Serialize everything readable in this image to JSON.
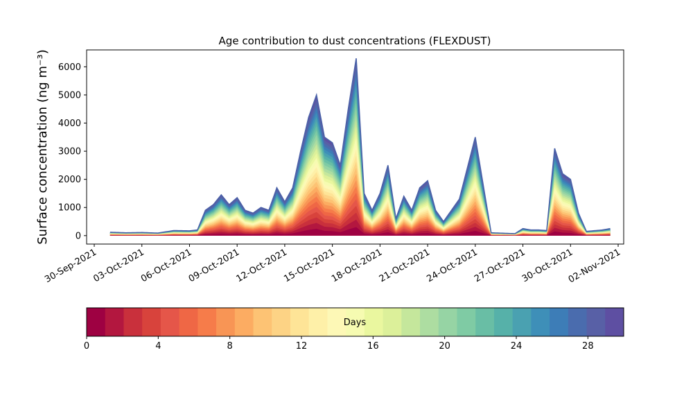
{
  "chart_data": {
    "type": "area",
    "stacked": true,
    "title": "Age contribution to dust concentrations (FLEXDUST)",
    "ylabel": "Surface concentration (ng m⁻³)",
    "xlabel": "",
    "ylim": [
      -300,
      6600
    ],
    "y_ticks": [
      0,
      1000,
      2000,
      3000,
      4000,
      5000,
      6000
    ],
    "x_ticks": [
      "30-Sep-2021",
      "03-Oct-2021",
      "06-Oct-2021",
      "09-Oct-2021",
      "12-Oct-2021",
      "15-Oct-2021",
      "18-Oct-2021",
      "21-Oct-2021",
      "24-Oct-2021",
      "27-Oct-2021",
      "30-Oct-2021",
      "02-Nov-2021"
    ],
    "grid": false,
    "total_series": {
      "name": "",
      "x": [
        "2021-10-01",
        "2021-10-02",
        "2021-10-03",
        "2021-10-04",
        "2021-10-05",
        "2021-10-06",
        "2021-10-06T12",
        "2021-10-07",
        "2021-10-07T12",
        "2021-10-08",
        "2021-10-08T12",
        "2021-10-09",
        "2021-10-09T12",
        "2021-10-10",
        "2021-10-10T12",
        "2021-10-11",
        "2021-10-11T12",
        "2021-10-12",
        "2021-10-12T12",
        "2021-10-13",
        "2021-10-13T12",
        "2021-10-14",
        "2021-10-14T12",
        "2021-10-15",
        "2021-10-15T12",
        "2021-10-16",
        "2021-10-16T12",
        "2021-10-17",
        "2021-10-17T12",
        "2021-10-18",
        "2021-10-18T12",
        "2021-10-19",
        "2021-10-19T12",
        "2021-10-20",
        "2021-10-20T12",
        "2021-10-21",
        "2021-10-21T12",
        "2021-10-22",
        "2021-10-23",
        "2021-10-24",
        "2021-10-25",
        "2021-10-26",
        "2021-10-26T12",
        "2021-10-27",
        "2021-10-27T12",
        "2021-10-28",
        "2021-10-28T12",
        "2021-10-29",
        "2021-10-29T12",
        "2021-10-30",
        "2021-10-30T12",
        "2021-10-31",
        "2021-11-01",
        "2021-11-01T12"
      ],
      "values": [
        120,
        100,
        110,
        90,
        180,
        170,
        200,
        900,
        1100,
        1450,
        1100,
        1350,
        900,
        800,
        1000,
        900,
        1700,
        1200,
        1700,
        3000,
        4200,
        5000,
        3500,
        3300,
        2500,
        4500,
        6300,
        1500,
        900,
        1500,
        2500,
        600,
        1400,
        900,
        1700,
        1950,
        900,
        500,
        1300,
        3500,
        100,
        80,
        70,
        250,
        200,
        200,
        180,
        3100,
        2200,
        2000,
        800,
        150,
        200,
        250
      ]
    },
    "colorbar": {
      "label": "Days",
      "min": 0,
      "max": 30,
      "ticks": [
        0,
        4,
        8,
        12,
        16,
        20,
        24,
        28
      ],
      "colormap": "Spectral",
      "colors": [
        "#9e0142",
        "#b3173f",
        "#c9303c",
        "#d8433c",
        "#e55649",
        "#ef6745",
        "#f67c4a",
        "#f89555",
        "#fcac62",
        "#fdc374",
        "#fdd385",
        "#fee497",
        "#fef0a8",
        "#fdf8b6",
        "#f6fbb1",
        "#eaf79f",
        "#dcf09a",
        "#c5e79c",
        "#addda1",
        "#96d4a4",
        "#7fcba4",
        "#69bea5",
        "#56b1a9",
        "#4aa1b1",
        "#3e8fb8",
        "#3d7db7",
        "#4a6cae",
        "#5860a6",
        "#5e4fa2"
      ]
    }
  }
}
